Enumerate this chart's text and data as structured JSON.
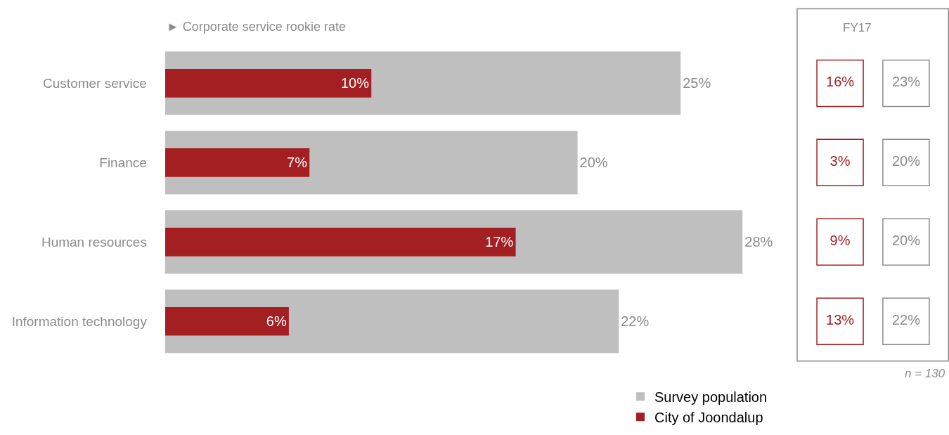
{
  "chart_data": [
    {
      "type": "bar",
      "orientation": "horizontal",
      "subtitle": "► Corporate service rookie rate",
      "categories": [
        "Customer service",
        "Finance",
        "Human resources",
        "Information technology"
      ],
      "series": [
        {
          "name": "Survey population",
          "color": "#bfbfbf",
          "values": [
            25,
            20,
            28,
            22
          ],
          "value_labels": [
            "25%",
            "20%",
            "28%",
            "22%"
          ]
        },
        {
          "name": "City of Joondalup",
          "color": "#a31f21",
          "values": [
            10,
            7,
            17,
            6
          ],
          "value_labels": [
            "10%",
            "7%",
            "17%",
            "6%"
          ]
        }
      ],
      "legend": "bottom right"
    },
    {
      "type": "other",
      "title": "FY17",
      "annotations": [
        "16%",
        "23%",
        "3%",
        "20%",
        "9%",
        "20%",
        "13%",
        "22%",
        "n = 130"
      ]
    }
  ]
}
